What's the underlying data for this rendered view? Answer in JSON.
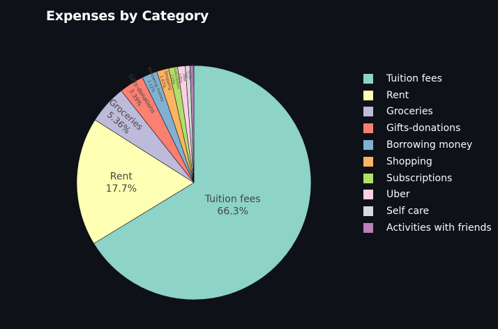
{
  "title": "Expenses by Category",
  "chart_data": {
    "type": "pie",
    "title": "Expenses by Category",
    "legend_position": "right",
    "slices": [
      {
        "label": "Tuition fees",
        "value": 66.3,
        "percent_label": "66.3%",
        "color": "#8dd3c7"
      },
      {
        "label": "Rent",
        "value": 17.7,
        "percent_label": "17.7%",
        "color": "#ffffb3"
      },
      {
        "label": "Groceries",
        "value": 5.36,
        "percent_label": "5.36%",
        "color": "#bebada"
      },
      {
        "label": "Gifts-donations",
        "value": 3.39,
        "percent_label": "3.39%",
        "color": "#fb8072"
      },
      {
        "label": "Borrowing money",
        "value": 2.12,
        "percent_label": "2.12%",
        "color": "#80b1d3"
      },
      {
        "label": "Shopping",
        "value": 1.67,
        "percent_label": "1.67%",
        "color": "#fdb462"
      },
      {
        "label": "Subscriptions",
        "value": 1.23,
        "percent_label": "1.23%",
        "color": "#b3de69"
      },
      {
        "label": "Uber",
        "value": 1.05,
        "percent_label": "1.05%",
        "color": "#fccde5"
      },
      {
        "label": "Self care",
        "value": 0.65,
        "percent_label": "0.65%",
        "color": "#d9d9d9"
      },
      {
        "label": "Activities with friends",
        "value": 0.53,
        "percent_label": "0.53%",
        "color": "#bc80bd"
      }
    ]
  }
}
